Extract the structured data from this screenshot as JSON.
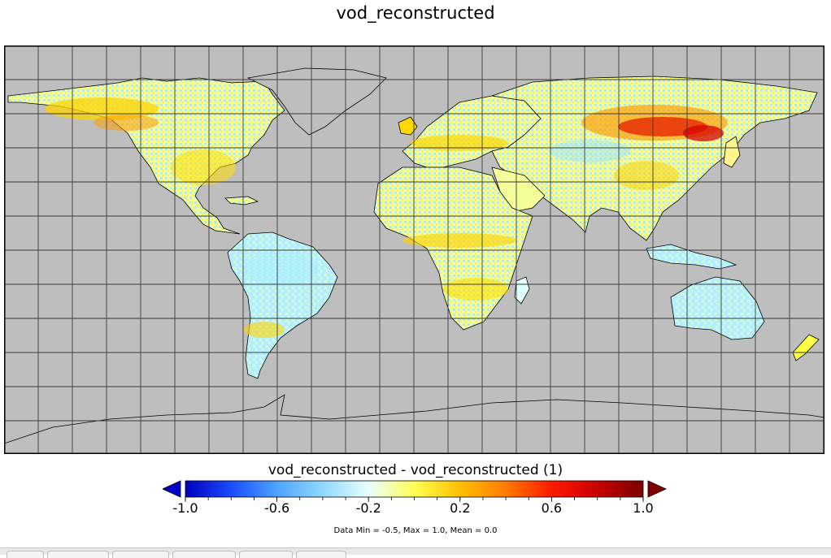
{
  "title": "vod_reconstructed",
  "colorbar": {
    "title": "vod_reconstructed - vod_reconstructed (1)",
    "ticks": [
      "-1.0",
      "-0.6",
      "-0.2",
      "0.2",
      "0.6",
      "1.0"
    ],
    "range": [
      -1.0,
      1.0
    ],
    "colors": {
      "under": "#0000c8",
      "over": "#800000",
      "stops": [
        "#0000bb",
        "#1a4cff",
        "#4ea3ff",
        "#8fd8ff",
        "#e8ffff",
        "#ffff55",
        "#ffc000",
        "#ff7a00",
        "#ff1a00",
        "#c80000",
        "#7a0000"
      ]
    }
  },
  "stats": "Data Min = -0.5, Max = 1.0, Mean = 0.0",
  "map": {
    "projection": "equirectangular",
    "ocean_color": "#bebebe",
    "grid": "on",
    "grid_spacing_degrees": 10,
    "land_palette": [
      "#c9ffff",
      "#9fe6ff",
      "#f2ff9a",
      "#ffff44",
      "#ffd400",
      "#ff9a00",
      "#e51c00"
    ]
  }
}
